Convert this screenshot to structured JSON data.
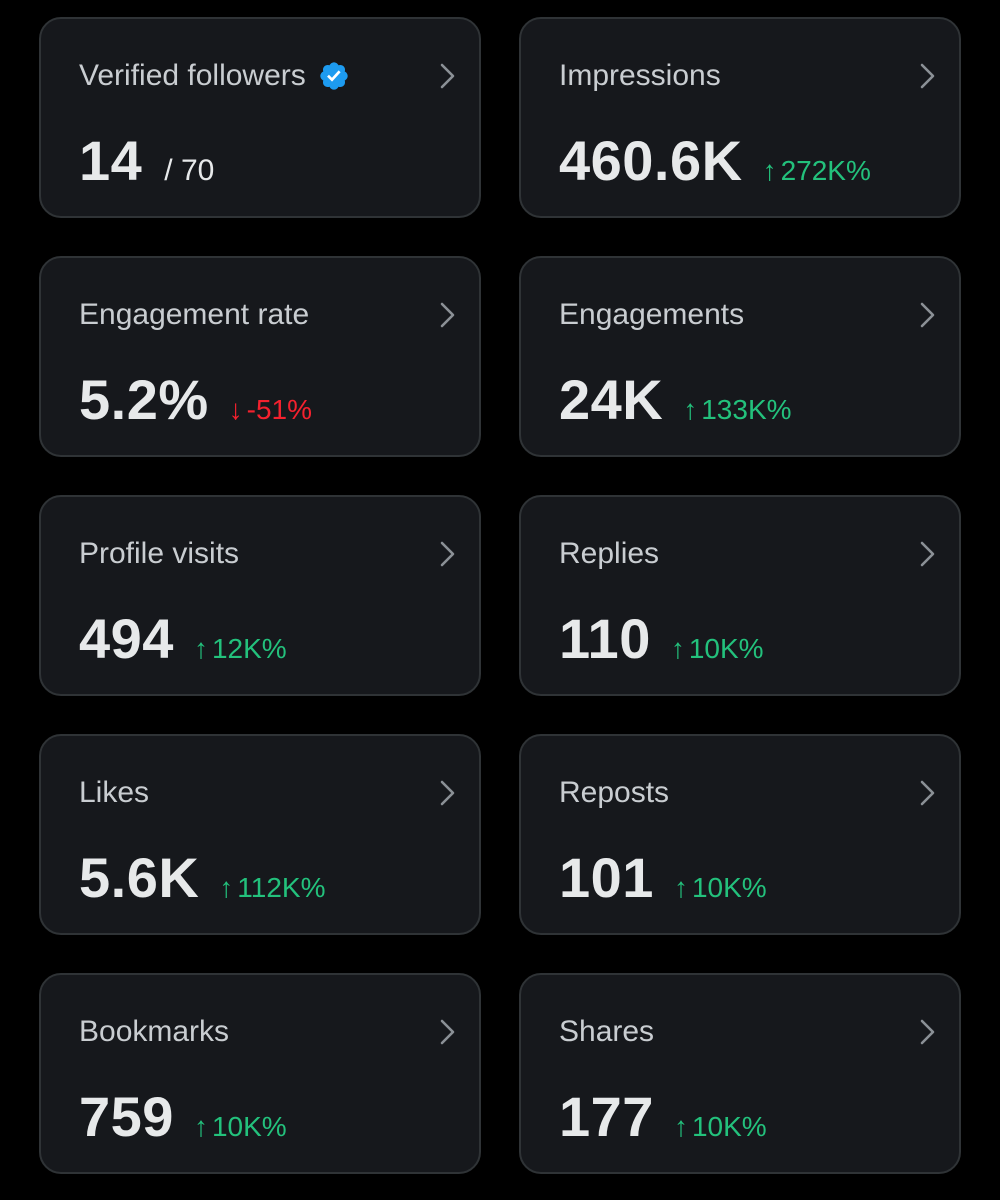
{
  "colors": {
    "background": "#000000",
    "card": "#16181c",
    "card_border": "#2f3336",
    "title_text": "#c9cdd1",
    "value_text": "#e7e9ea",
    "positive": "#23c17c",
    "negative": "#f4212e",
    "verified_badge": "#1d9bf0"
  },
  "icons": {
    "verified": "verified-badge-icon",
    "chevron": "chevron-right-icon",
    "arrow_up": "↑",
    "arrow_down": "↓"
  },
  "metrics": [
    {
      "title": "Verified followers",
      "value": "14",
      "suffix": "/ 70"
    },
    {
      "title": "Impressions",
      "value": "460.6K",
      "delta": "272K%",
      "direction": "up"
    },
    {
      "title": "Engagement rate",
      "value": "5.2%",
      "delta": "-51%",
      "direction": "down"
    },
    {
      "title": "Engagements",
      "value": "24K",
      "delta": "133K%",
      "direction": "up"
    },
    {
      "title": "Profile visits",
      "value": "494",
      "delta": "12K%",
      "direction": "up"
    },
    {
      "title": "Replies",
      "value": "110",
      "delta": "10K%",
      "direction": "up"
    },
    {
      "title": "Likes",
      "value": "5.6K",
      "delta": "112K%",
      "direction": "up"
    },
    {
      "title": "Reposts",
      "value": "101",
      "delta": "10K%",
      "direction": "up"
    },
    {
      "title": "Bookmarks",
      "value": "759",
      "delta": "10K%",
      "direction": "up"
    },
    {
      "title": "Shares",
      "value": "177",
      "delta": "10K%",
      "direction": "up"
    }
  ]
}
